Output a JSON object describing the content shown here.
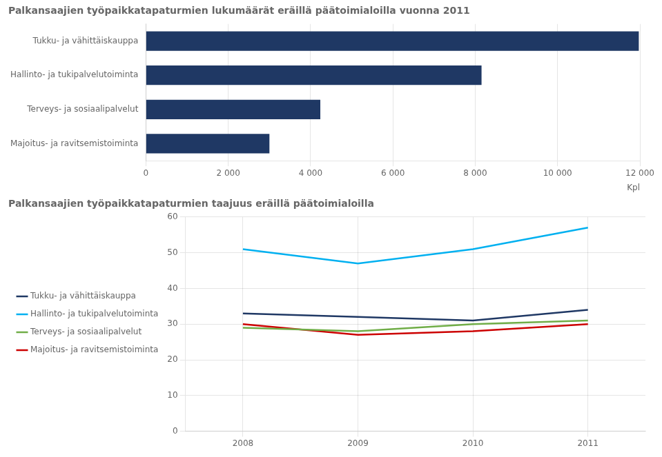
{
  "chart_data": [
    {
      "type": "bar",
      "title": "Palkansaajien työpaikkatapaturmien lukumäärät eräillä päätoimialoilla vuonna 2011",
      "xlabel": "Kpl",
      "orientation": "horizontal",
      "categories": [
        "Tukku- ja vähittäiskauppa",
        "Hallinto- ja tukipalvelutoiminta",
        "Terveys- ja sosiaalipalvelut",
        "Majoitus- ja ravitsemistoiminta"
      ],
      "values": [
        11973,
        8153,
        4237,
        3001
      ],
      "color": "#1F3864",
      "xlim": [
        0,
        12000
      ],
      "xticks": [
        0,
        {
          "value": 2000,
          "label": "2 000"
        },
        {
          "value": 4000,
          "label": "4 000"
        },
        {
          "value": 6000,
          "label": "6 000"
        },
        {
          "value": 8000,
          "label": "8 000"
        },
        {
          "value": 10000,
          "label": "10 000"
        },
        {
          "value": 12000,
          "label": "12 000"
        }
      ],
      "grid": true
    },
    {
      "type": "line",
      "title": "Palkansaajien työpaikkatapaturmien taajuus eräillä päätoimialoilla",
      "x": [
        2008,
        2009,
        2010,
        2011
      ],
      "series": [
        {
          "name": "Tukku- ja vähittäiskauppa",
          "color": "#1F3864",
          "values": [
            33,
            32,
            31,
            34
          ]
        },
        {
          "name": "Hallinto- ja tukipalvelutoiminta",
          "color": "#00B0F0",
          "values": [
            51,
            47,
            51,
            57
          ]
        },
        {
          "name": "Terveys- ja sosiaalipalvelut",
          "color": "#70AD47",
          "values": [
            29,
            28,
            30,
            31
          ]
        },
        {
          "name": "Majoitus- ja ravitsemistoiminta",
          "color": "#CC0000",
          "values": [
            30,
            27,
            28,
            30
          ]
        }
      ],
      "xlim": [
        2007.5,
        2011.5
      ],
      "xticks": [
        2008,
        2009,
        2010,
        2011
      ],
      "ylim": [
        0,
        60
      ],
      "yticks": [
        0,
        10,
        20,
        30,
        40,
        50,
        60
      ],
      "grid": true,
      "legend": "left"
    }
  ]
}
